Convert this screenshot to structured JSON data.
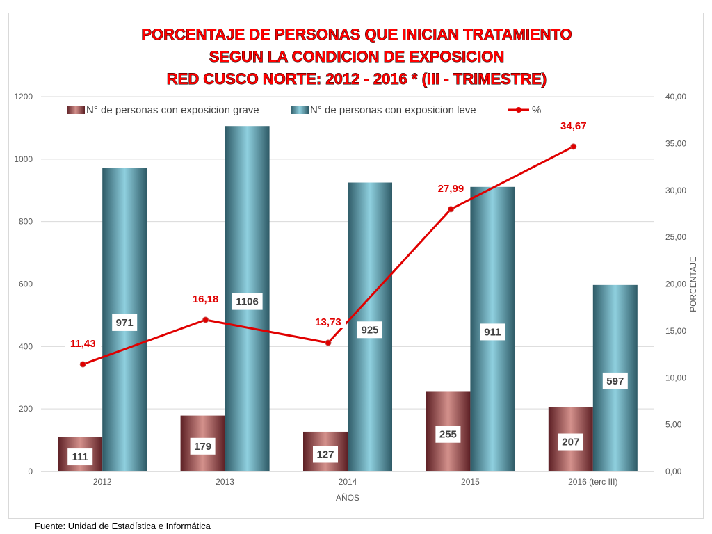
{
  "source_note": "Fuente: Unidad de Estadística e Informática",
  "colors": {
    "title": "#ff0000",
    "grave_dark": "#5c1f24",
    "grave_light": "#d4918c",
    "leve_dark": "#2e5a66",
    "leve_light": "#8fd0df",
    "line": "#e00000",
    "label_text": "#404040"
  },
  "chart_data": {
    "type": "bar",
    "title_lines": [
      "PORCENTAJE DE PERSONAS QUE INICIAN TRATAMIENTO",
      "SEGUN LA CONDICION DE EXPOSICION",
      "RED CUSCO NORTE: 2012 - 2016 * (III - TRIMESTRE)"
    ],
    "xlabel": "AÑOS",
    "ylabel": "",
    "y2label": "PORCENTAJE",
    "categories": [
      "2012",
      "2013",
      "2014",
      "2015",
      "2016 (terc III)"
    ],
    "ylim": [
      0,
      1200
    ],
    "yticks": [
      "0",
      "200",
      "400",
      "600",
      "800",
      "1000",
      "1200"
    ],
    "y2lim": [
      0,
      40
    ],
    "y2ticks": [
      "0,00",
      "5,00",
      "10,00",
      "15,00",
      "20,00",
      "25,00",
      "30,00",
      "35,00",
      "40,00"
    ],
    "grid": "horizontal",
    "legend_position": "top",
    "series": [
      {
        "name": "N° de personas con exposicion grave",
        "type": "bar",
        "axis": "left",
        "values": [
          111,
          179,
          127,
          255,
          207
        ],
        "labels": [
          "111",
          "179",
          "127",
          "255",
          "207"
        ]
      },
      {
        "name": "N° de personas con exposicion leve",
        "type": "bar",
        "axis": "left",
        "values": [
          971,
          1106,
          925,
          911,
          597
        ],
        "labels": [
          "971",
          "1106",
          "925",
          "911",
          "597"
        ]
      },
      {
        "name": "%",
        "type": "line",
        "axis": "right",
        "values": [
          11.43,
          16.18,
          13.73,
          27.99,
          34.67
        ],
        "labels": [
          "11,43",
          "16,18",
          "13,73",
          "27,99",
          "34,67"
        ]
      }
    ]
  }
}
